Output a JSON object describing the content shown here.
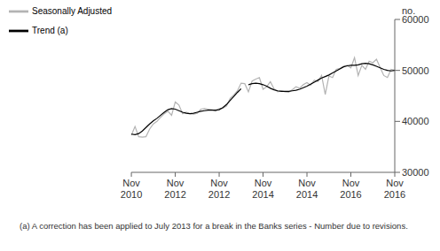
{
  "chart_data": {
    "type": "line",
    "y_label": "no.",
    "footnote": "(a) A correction has been applied to July 2013 for a break in the Banks series - Number due to revisions.",
    "categories": [
      "Nov 2010",
      null,
      null,
      null,
      null,
      null,
      null,
      null,
      null,
      null,
      null,
      null,
      "Nov 2012",
      null,
      null,
      null,
      null,
      null,
      null,
      null,
      null,
      null,
      null,
      null,
      "Nov 2012",
      null,
      null,
      null,
      null,
      null,
      null,
      null,
      null,
      null,
      null,
      null,
      "Nov 2014",
      null,
      null,
      null,
      null,
      null,
      null,
      null,
      null,
      null,
      null,
      null,
      "Nov 2014",
      null,
      null,
      null,
      null,
      null,
      null,
      null,
      null,
      null,
      null,
      null,
      "Nov 2016",
      null,
      null,
      null,
      null,
      null,
      null,
      null,
      null,
      null,
      null,
      null,
      "Nov 2016"
    ],
    "series": [
      {
        "name": "Trend (a)",
        "color": "#000000",
        "values": [
          37500,
          37400,
          37600,
          38100,
          38800,
          39500,
          40100,
          40600,
          41200,
          41800,
          42300,
          42500,
          42400,
          42100,
          41800,
          41600,
          41500,
          41600,
          41800,
          42000,
          42100,
          42200,
          42200,
          42200,
          42300,
          42700,
          43300,
          44100,
          44900,
          45700,
          46400,
          null,
          47200,
          47400,
          47500,
          47400,
          47200,
          46900,
          46500,
          46200,
          46000,
          45900,
          45900,
          45900,
          46000,
          46100,
          46300,
          46600,
          46900,
          47300,
          47700,
          48100,
          48500,
          48800,
          49100,
          49500,
          49900,
          50300,
          50700,
          50900,
          51000,
          51000,
          51100,
          51300,
          51400,
          51300,
          51100,
          50800,
          50500,
          50200,
          50000,
          49900,
          50000
        ]
      },
      {
        "name": "Seasonally Adjusted",
        "color": "#b3b3b3",
        "values": [
          37300,
          39000,
          37000,
          36900,
          37000,
          38500,
          39500,
          40000,
          40800,
          41500,
          42000,
          41200,
          43800,
          43200,
          41500,
          41800,
          41500,
          41400,
          41600,
          42400,
          42500,
          42400,
          42300,
          42000,
          42500,
          42600,
          43000,
          44500,
          45200,
          46000,
          47500,
          47400,
          45800,
          47900,
          48300,
          48600,
          46300,
          46800,
          47800,
          46400,
          45800,
          46000,
          45800,
          45700,
          46200,
          46800,
          46500,
          47200,
          47600,
          47100,
          48100,
          47800,
          49000,
          45300,
          48900,
          48600,
          50200,
          50400,
          50800,
          51000,
          50500,
          52500,
          49000,
          51000,
          50200,
          51800,
          51500,
          52200,
          50600,
          49000,
          48600,
          50200,
          50000
        ]
      }
    ],
    "ylim": [
      30000,
      60000
    ],
    "yticks": [
      30000,
      40000,
      50000,
      60000
    ],
    "grid": false,
    "legend": "top-left"
  }
}
